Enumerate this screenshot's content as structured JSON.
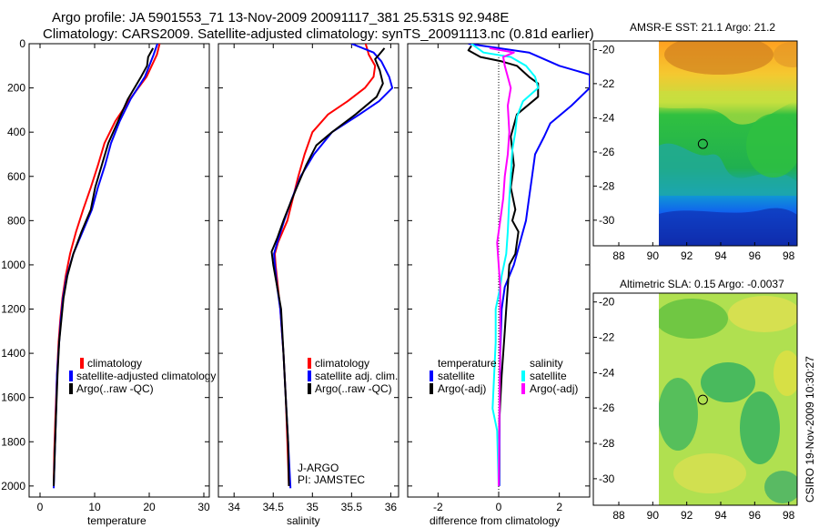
{
  "header": {
    "title_line1": "Argo profile: JA 5901553_71 13-Nov-2009 20091117_381 25.531S 92.948E",
    "title_line2": "Climatology: CARS2009. Satellite-adjusted climatology: synTS_20091113.nc (0.81d earlier)"
  },
  "colors": {
    "climatology": "#ff0000",
    "satellite": "#0000ff",
    "argo": "#000000",
    "argo_adj_sal": "#ff00ff",
    "sat_sal": "#00ffff"
  },
  "chart_data": [
    {
      "id": "temperature",
      "type": "line",
      "xlabel": "temperature",
      "ylabel": "",
      "xlim": [
        -2,
        31
      ],
      "ylim": [
        2050,
        0
      ],
      "xticks": [
        "0",
        "10",
        "20",
        "30"
      ],
      "yticks": [
        "0",
        "200",
        "400",
        "600",
        "800",
        "1000",
        "1200",
        "1400",
        "1600",
        "1800",
        "2000"
      ],
      "series": [
        {
          "name": "climatology",
          "color": "#ff0000",
          "points": [
            [
              21.9,
              0
            ],
            [
              21.4,
              50
            ],
            [
              19.5,
              150
            ],
            [
              16.5,
              250
            ],
            [
              13.8,
              350
            ],
            [
              11.8,
              450
            ],
            [
              10.6,
              550
            ],
            [
              9.3,
              650
            ],
            [
              7.9,
              750
            ],
            [
              6.6,
              850
            ],
            [
              5.5,
              950
            ],
            [
              4.7,
              1050
            ],
            [
              4.1,
              1150
            ],
            [
              3.7,
              1250
            ],
            [
              3.4,
              1350
            ],
            [
              3.1,
              1500
            ],
            [
              2.8,
              1700
            ],
            [
              2.6,
              1850
            ],
            [
              2.5,
              2000
            ]
          ]
        },
        {
          "name": "satellite-adjusted climatology",
          "color": "#0000ff",
          "points": [
            [
              21.5,
              0
            ],
            [
              20.8,
              50
            ],
            [
              19.2,
              150
            ],
            [
              16.6,
              250
            ],
            [
              14.6,
              350
            ],
            [
              13.0,
              450
            ],
            [
              11.9,
              550
            ],
            [
              10.6,
              650
            ],
            [
              9.5,
              750
            ],
            [
              7.8,
              850
            ],
            [
              6.1,
              950
            ],
            [
              4.9,
              1050
            ],
            [
              4.2,
              1150
            ],
            [
              3.8,
              1250
            ],
            [
              3.5,
              1350
            ],
            [
              3.1,
              1500
            ],
            [
              2.9,
              1700
            ],
            [
              2.7,
              1850
            ],
            [
              2.5,
              2010
            ]
          ]
        },
        {
          "name": "Argo(..raw -QC)",
          "color": "#000000",
          "points": [
            [
              20.7,
              20
            ],
            [
              19.8,
              60
            ],
            [
              19.6,
              100
            ],
            [
              18.5,
              150
            ],
            [
              16.1,
              250
            ],
            [
              14.3,
              350
            ],
            [
              12.5,
              450
            ],
            [
              11.3,
              550
            ],
            [
              10.1,
              650
            ],
            [
              9.3,
              750
            ],
            [
              7.6,
              850
            ],
            [
              6.1,
              950
            ],
            [
              5.0,
              1050
            ],
            [
              4.3,
              1150
            ],
            [
              3.9,
              1250
            ],
            [
              3.5,
              1350
            ],
            [
              3.2,
              1500
            ],
            [
              2.9,
              1700
            ],
            [
              2.7,
              1850
            ],
            [
              2.5,
              2000
            ]
          ]
        }
      ],
      "legend": [
        {
          "label": "climatology",
          "color": "#ff0000"
        },
        {
          "label": "satellite-adjusted climatology",
          "color": "#0000ff"
        },
        {
          "label": "Argo(..raw -QC)",
          "color": "#000000"
        }
      ]
    },
    {
      "id": "salinity",
      "type": "line",
      "xlabel": "salinity",
      "ylabel": "",
      "xlim": [
        33.8,
        36.1
      ],
      "ylim": [
        2050,
        0
      ],
      "xticks": [
        "34",
        "34.5",
        "35",
        "35.5",
        "36"
      ],
      "annotation_line1": "J-ARGO",
      "annotation_line2": "PI: JAMSTEC",
      "series": [
        {
          "name": "climatology",
          "color": "#ff0000",
          "points": [
            [
              35.68,
              0
            ],
            [
              35.72,
              50
            ],
            [
              35.8,
              100
            ],
            [
              35.78,
              150
            ],
            [
              35.67,
              200
            ],
            [
              35.45,
              260
            ],
            [
              35.2,
              320
            ],
            [
              35.0,
              400
            ],
            [
              34.9,
              500
            ],
            [
              34.82,
              600
            ],
            [
              34.75,
              700
            ],
            [
              34.68,
              800
            ],
            [
              34.56,
              900
            ],
            [
              34.52,
              950
            ],
            [
              34.53,
              1000
            ],
            [
              34.56,
              1100
            ],
            [
              34.59,
              1200
            ],
            [
              34.63,
              1400
            ],
            [
              34.66,
              1600
            ],
            [
              34.68,
              1800
            ],
            [
              34.7,
              2000
            ]
          ]
        },
        {
          "name": "satellite adj. clim.",
          "color": "#0000ff",
          "points": [
            [
              35.5,
              0
            ],
            [
              35.78,
              40
            ],
            [
              35.88,
              80
            ],
            [
              35.98,
              150
            ],
            [
              36.02,
              200
            ],
            [
              35.85,
              260
            ],
            [
              35.6,
              320
            ],
            [
              35.25,
              400
            ],
            [
              35.02,
              500
            ],
            [
              34.85,
              600
            ],
            [
              34.74,
              700
            ],
            [
              34.64,
              800
            ],
            [
              34.55,
              900
            ],
            [
              34.51,
              950
            ],
            [
              34.52,
              1000
            ],
            [
              34.55,
              1100
            ],
            [
              34.59,
              1200
            ],
            [
              34.63,
              1400
            ],
            [
              34.66,
              1600
            ],
            [
              34.69,
              1800
            ],
            [
              34.72,
              2010
            ]
          ]
        },
        {
          "name": "Argo(..raw -QC)",
          "color": "#000000",
          "points": [
            [
              35.92,
              20
            ],
            [
              35.85,
              50
            ],
            [
              35.8,
              70
            ],
            [
              35.86,
              120
            ],
            [
              35.9,
              180
            ],
            [
              35.82,
              240
            ],
            [
              35.55,
              320
            ],
            [
              35.25,
              400
            ],
            [
              35.05,
              460
            ],
            [
              34.92,
              550
            ],
            [
              34.8,
              650
            ],
            [
              34.72,
              720
            ],
            [
              34.63,
              800
            ],
            [
              34.55,
              880
            ],
            [
              34.48,
              940
            ],
            [
              34.5,
              1000
            ],
            [
              34.55,
              1100
            ],
            [
              34.6,
              1200
            ],
            [
              34.63,
              1400
            ],
            [
              34.66,
              1600
            ],
            [
              34.69,
              1800
            ],
            [
              34.7,
              2000
            ]
          ]
        }
      ],
      "legend": [
        {
          "label": "climatology",
          "color": "#ff0000"
        },
        {
          "label": "satellite adj. clim.",
          "color": "#0000ff"
        },
        {
          "label": "Argo(..raw -QC)",
          "color": "#000000"
        }
      ]
    },
    {
      "id": "difference",
      "type": "line",
      "xlabel": "difference from climatology",
      "ylabel": "",
      "xlim": [
        -3,
        3
      ],
      "ylim": [
        2050,
        0
      ],
      "xticks": [
        "-2",
        "0",
        "2"
      ],
      "legend_header_temperature": "temperature",
      "legend_header_salinity": "salinity",
      "series": [
        {
          "name": "temperature satellite",
          "color": "#0000ff",
          "points": [
            [
              -1.0,
              0
            ],
            [
              0.0,
              20
            ],
            [
              1.0,
              40
            ],
            [
              2.0,
              100
            ],
            [
              3.0,
              140
            ],
            [
              3.0,
              200
            ],
            [
              2.4,
              280
            ],
            [
              1.7,
              360
            ],
            [
              1.5,
              420
            ],
            [
              1.2,
              500
            ],
            [
              1.1,
              600
            ],
            [
              1.0,
              700
            ],
            [
              0.9,
              800
            ],
            [
              0.7,
              900
            ],
            [
              0.5,
              1000
            ],
            [
              0.35,
              1050
            ],
            [
              0.2,
              1100
            ],
            [
              0.1,
              1200
            ],
            [
              0.05,
              1400
            ],
            [
              0.03,
              1700
            ],
            [
              0.02,
              2000
            ]
          ]
        },
        {
          "name": "temperature Argo(-adj)",
          "color": "#000000",
          "points": [
            [
              -0.9,
              10
            ],
            [
              -1.0,
              30
            ],
            [
              -0.6,
              60
            ],
            [
              0.1,
              80
            ],
            [
              0.6,
              100
            ],
            [
              1.0,
              150
            ],
            [
              1.3,
              180
            ],
            [
              1.3,
              240
            ],
            [
              0.6,
              320
            ],
            [
              0.4,
              420
            ],
            [
              0.5,
              550
            ],
            [
              0.4,
              650
            ],
            [
              0.55,
              750
            ],
            [
              0.45,
              800
            ],
            [
              0.65,
              850
            ],
            [
              0.55,
              950
            ],
            [
              0.35,
              1000
            ],
            [
              0.3,
              1100
            ],
            [
              0.25,
              1200
            ],
            [
              0.2,
              1300
            ],
            [
              0.1,
              1500
            ],
            [
              0.02,
              1700
            ],
            [
              0.0,
              2000
            ]
          ]
        },
        {
          "name": "salinity satellite",
          "color": "#00ffff",
          "points": [
            [
              -0.9,
              0
            ],
            [
              -0.5,
              40
            ],
            [
              0.4,
              60
            ],
            [
              0.9,
              100
            ],
            [
              1.2,
              150
            ],
            [
              1.3,
              200
            ],
            [
              0.8,
              260
            ],
            [
              0.6,
              330
            ],
            [
              0.55,
              400
            ],
            [
              0.45,
              480
            ],
            [
              0.4,
              600
            ],
            [
              0.35,
              700
            ],
            [
              0.3,
              850
            ],
            [
              0.25,
              950
            ],
            [
              0.1,
              1050
            ],
            [
              0.05,
              1100
            ],
            [
              -0.1,
              1200
            ],
            [
              -0.1,
              1350
            ],
            [
              -0.15,
              1500
            ],
            [
              -0.2,
              1650
            ],
            [
              -0.05,
              1750
            ],
            [
              0.0,
              2000
            ]
          ]
        },
        {
          "name": "salinity Argo(-adj)",
          "color": "#ff00ff",
          "points": [
            [
              -0.3,
              20
            ],
            [
              0.5,
              40
            ],
            [
              0.15,
              60
            ],
            [
              0.2,
              100
            ],
            [
              0.3,
              150
            ],
            [
              0.4,
              200
            ],
            [
              0.3,
              280
            ],
            [
              0.35,
              400
            ],
            [
              0.3,
              500
            ],
            [
              0.2,
              600
            ],
            [
              0.15,
              700
            ],
            [
              0.05,
              800
            ],
            [
              -0.05,
              900
            ],
            [
              0.0,
              1000
            ],
            [
              0.05,
              1100
            ],
            [
              0.05,
              1300
            ],
            [
              0.03,
              1600
            ],
            [
              0.0,
              2000
            ]
          ]
        }
      ],
      "legend": [
        {
          "label": "satellite",
          "color": "#0000ff"
        },
        {
          "label": "Argo(-adj)",
          "color": "#000000"
        },
        {
          "label": "satellite",
          "color": "#00ffff"
        },
        {
          "label": "Argo(-adj)",
          "color": "#ff00ff"
        }
      ]
    },
    {
      "id": "sst_map",
      "type": "heatmap",
      "title": "AMSR-E SST: 21.1 Argo: 21.2",
      "xlim": [
        86.5,
        98.5
      ],
      "ylim": [
        -31.5,
        -19.5
      ],
      "xticks": [
        "88",
        "90",
        "92",
        "94",
        "96",
        "98"
      ],
      "yticks": [
        "-20",
        "-22",
        "-24",
        "-26",
        "-28",
        "-30"
      ],
      "marker": {
        "lon": 92.948,
        "lat": -25.531
      },
      "data_extent_lon": [
        90,
        98.5
      ]
    },
    {
      "id": "sla_map",
      "type": "heatmap",
      "title": "Altimetric SLA: 0.15 Argo: -0.0037",
      "xlim": [
        86.5,
        98.5
      ],
      "ylim": [
        -31.5,
        -19.5
      ],
      "xticks": [
        "88",
        "90",
        "92",
        "94",
        "96",
        "98"
      ],
      "yticks": [
        "-20",
        "-22",
        "-24",
        "-26",
        "-28",
        "-30"
      ],
      "marker": {
        "lon": 92.948,
        "lat": -25.531
      },
      "data_extent_lon": [
        90,
        98.5
      ]
    }
  ],
  "footer": {
    "credit": "CSIRO 19-Nov-2009 10:30:27"
  }
}
